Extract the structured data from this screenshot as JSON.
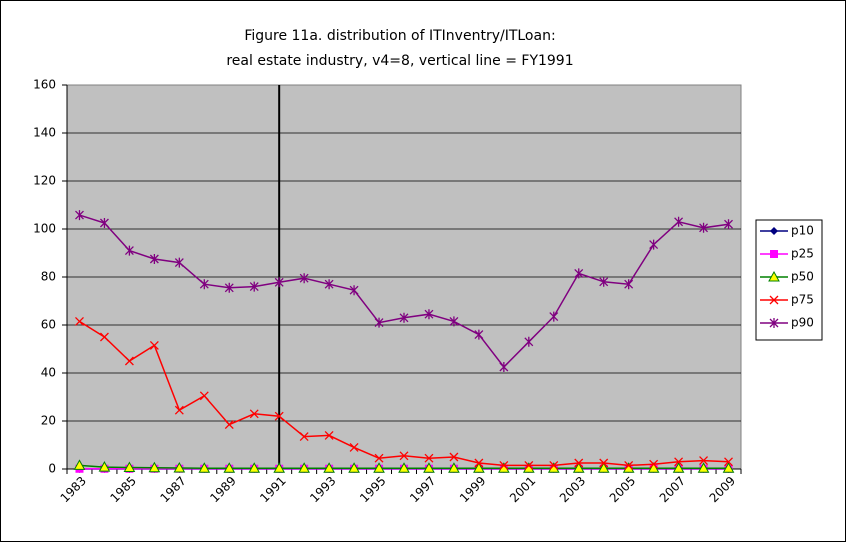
{
  "chart_data": {
    "type": "line",
    "title_lines": [
      "Figure 11a. distribution of  ITInventry/ITLoan:",
      "real estate industry, v4=8, vertical line = FY1991"
    ],
    "categories": [
      "1983",
      null,
      "1985",
      null,
      "1987",
      null,
      "1989",
      null,
      "1991",
      null,
      "1993",
      null,
      "1995",
      null,
      "1997",
      null,
      "1999",
      null,
      "2001",
      null,
      "2003",
      null,
      "2005",
      null,
      "2007",
      null,
      "2009"
    ],
    "vline": 1991,
    "ylim": [
      0,
      160
    ],
    "yticks": [
      0,
      20,
      40,
      60,
      80,
      100,
      120,
      140,
      160
    ],
    "grid": true,
    "legend": "right",
    "series": [
      {
        "name": "p10",
        "color": "#000080",
        "marker": "diamond",
        "values": [
          0,
          0,
          0,
          0,
          0,
          0,
          0,
          0,
          0,
          0,
          0,
          0,
          0,
          0,
          0,
          0,
          0,
          0,
          0,
          0,
          0,
          0,
          0,
          0,
          0,
          0,
          0
        ]
      },
      {
        "name": "p25",
        "color": "#ff00ff",
        "marker": "square",
        "values": [
          0.1,
          0.1,
          0.1,
          0.1,
          0.1,
          0.1,
          0.1,
          0.1,
          0.1,
          0.1,
          0.1,
          0.1,
          0.1,
          0.1,
          0.1,
          0.1,
          0.1,
          0.1,
          0.1,
          0.1,
          0.1,
          0.1,
          0.1,
          0.1,
          0.1,
          0.1,
          0.1
        ]
      },
      {
        "name": "p50",
        "color": "#008000",
        "marker": "triangle",
        "values": [
          1.5,
          0.8,
          0.6,
          0.5,
          0.4,
          0.3,
          0.3,
          0.3,
          0.3,
          0.3,
          0.3,
          0.3,
          0.3,
          0.3,
          0.3,
          0.3,
          0.3,
          0.3,
          0.3,
          0.3,
          0.3,
          0.3,
          0.3,
          0.3,
          0.3,
          0.3,
          0.3
        ]
      },
      {
        "name": "p75",
        "color": "#ff0000",
        "marker": "x",
        "values": [
          61.5,
          55,
          45,
          51.5,
          24.5,
          30.5,
          18.5,
          23,
          22,
          13.5,
          14,
          9,
          4.5,
          5.5,
          4.5,
          5,
          2.5,
          1.5,
          1.5,
          1.5,
          2.5,
          2.5,
          1.5,
          2,
          3,
          3.5,
          3
        ]
      },
      {
        "name": "p90",
        "color": "#800080",
        "marker": "star",
        "values": [
          105.8,
          102.5,
          91,
          87.5,
          86,
          77,
          75.5,
          76,
          77.8,
          79.5,
          77,
          74.5,
          61,
          63,
          64.5,
          61.5,
          56,
          42.5,
          53,
          63.5,
          81.5,
          78,
          77,
          93.5,
          103,
          100.5,
          102
        ]
      }
    ]
  }
}
